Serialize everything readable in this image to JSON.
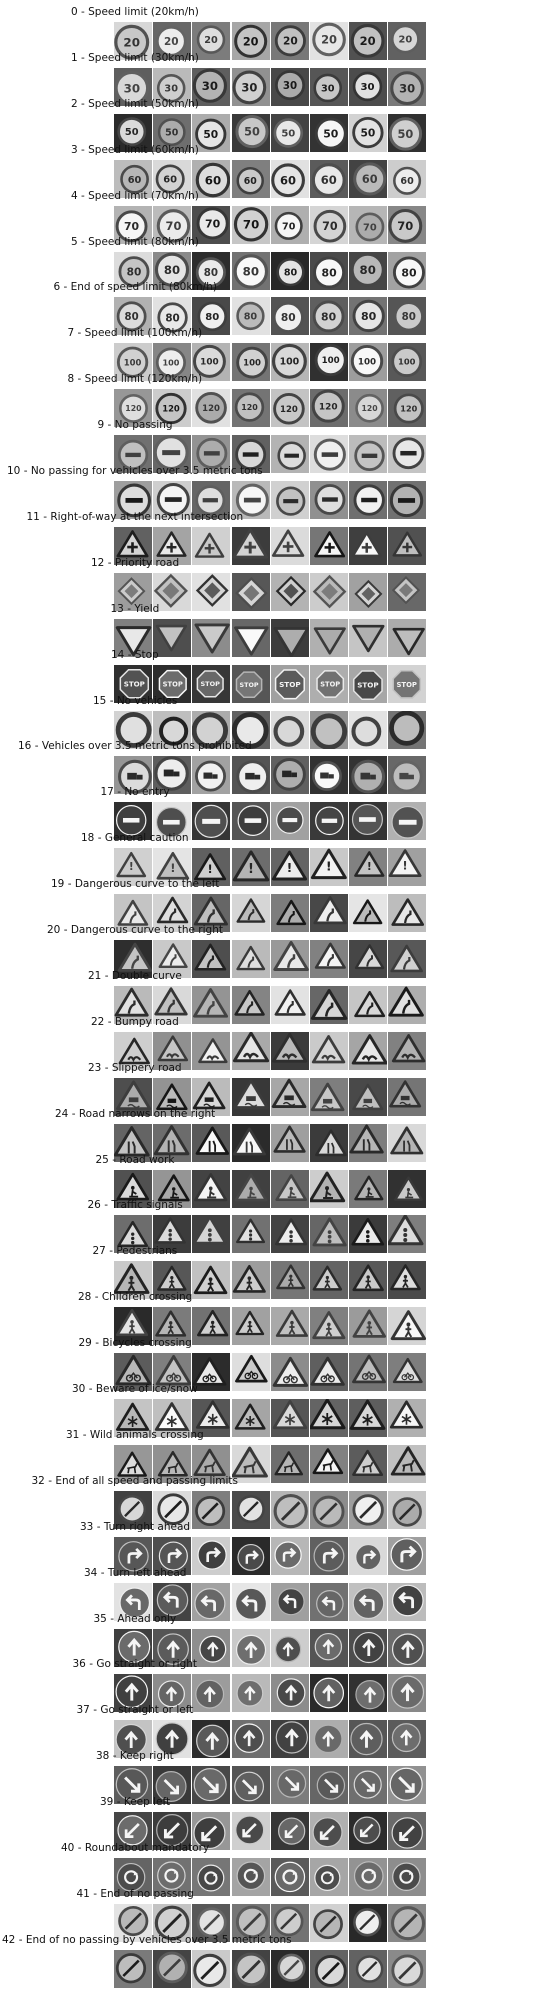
{
  "figure": {
    "images_per_class": 8,
    "colormap": "grayscale",
    "classes": [
      {
        "label": "0 - Speed limit (20km/h)",
        "shape": "circle",
        "symbol": "20"
      },
      {
        "label": "1 - Speed limit (30km/h)",
        "shape": "circle",
        "symbol": "30"
      },
      {
        "label": "2 - Speed limit (50km/h)",
        "shape": "circle",
        "symbol": "50"
      },
      {
        "label": "3 - Speed limit (60km/h)",
        "shape": "circle",
        "symbol": "60"
      },
      {
        "label": "4 - Speed limit (70km/h)",
        "shape": "circle",
        "symbol": "70"
      },
      {
        "label": "5 - Speed limit (80km/h)",
        "shape": "circle",
        "symbol": "80"
      },
      {
        "label": "6 - End of speed limit (80km/h)",
        "shape": "circle",
        "symbol": "80"
      },
      {
        "label": "7 - Speed limit (100km/h)",
        "shape": "circle",
        "symbol": "100"
      },
      {
        "label": "8 - Speed limit (120km/h)",
        "shape": "circle",
        "symbol": "120"
      },
      {
        "label": "9 - No passing",
        "shape": "circle",
        "symbol": "bar"
      },
      {
        "label": "10 - No passing for vehicles over 3.5 metric tons",
        "shape": "circle",
        "symbol": "bar"
      },
      {
        "label": "11 - Right-of-way at the next intersection",
        "shape": "triangle",
        "symbol": "cross"
      },
      {
        "label": "12 - Priority road",
        "shape": "diamond",
        "symbol": ""
      },
      {
        "label": "13 - Yield",
        "shape": "inv-triangle",
        "symbol": ""
      },
      {
        "label": "14 - Stop",
        "shape": "octagon",
        "symbol": "STOP"
      },
      {
        "label": "15 - No vehicles",
        "shape": "ring",
        "symbol": ""
      },
      {
        "label": "16 - Vehicles over 3.5 metric tons prohibited",
        "shape": "circle",
        "symbol": "truck"
      },
      {
        "label": "17 - No entry",
        "shape": "disc",
        "symbol": "bar"
      },
      {
        "label": "18 - General caution",
        "shape": "triangle",
        "symbol": "!"
      },
      {
        "label": "19 - Dangerous curve to the left",
        "shape": "triangle",
        "symbol": "curve"
      },
      {
        "label": "20 - Dangerous curve to the right",
        "shape": "triangle",
        "symbol": "curve"
      },
      {
        "label": "21 - Double curve",
        "shape": "triangle",
        "symbol": "curve"
      },
      {
        "label": "22 - Bumpy road",
        "shape": "triangle",
        "symbol": "bump"
      },
      {
        "label": "23 - Slippery road",
        "shape": "triangle",
        "symbol": "car"
      },
      {
        "label": "24 - Road narrows on the right",
        "shape": "triangle",
        "symbol": "narrow"
      },
      {
        "label": "25 - Road work",
        "shape": "triangle",
        "symbol": "work"
      },
      {
        "label": "26 - Traffic signals",
        "shape": "triangle",
        "symbol": "signal"
      },
      {
        "label": "27 - Pedestrians",
        "shape": "triangle",
        "symbol": "person"
      },
      {
        "label": "28 - Children crossing",
        "shape": "triangle",
        "symbol": "person"
      },
      {
        "label": "29 - Bicycles crossing",
        "shape": "triangle",
        "symbol": "bike"
      },
      {
        "label": "30 - Beware of ice/snow",
        "shape": "triangle",
        "symbol": "snow"
      },
      {
        "label": "31 - Wild animals crossing",
        "shape": "triangle",
        "symbol": "deer"
      },
      {
        "label": "32 - End of all speed and passing limits",
        "shape": "circle",
        "symbol": "slash"
      },
      {
        "label": "33 - Turn right ahead",
        "shape": "disc",
        "symbol": "arrow-right"
      },
      {
        "label": "34 - Turn left ahead",
        "shape": "disc",
        "symbol": "arrow-left"
      },
      {
        "label": "35 - Ahead only",
        "shape": "disc",
        "symbol": "arrow-up"
      },
      {
        "label": "36 - Go straight or right",
        "shape": "disc",
        "symbol": "arrow-up"
      },
      {
        "label": "37 - Go straight or left",
        "shape": "disc",
        "symbol": "arrow-up"
      },
      {
        "label": "38 - Keep right",
        "shape": "disc",
        "symbol": "arrow-dr"
      },
      {
        "label": "39 - Keep left",
        "shape": "disc",
        "symbol": "arrow-dl"
      },
      {
        "label": "40 - Roundabout mandatory",
        "shape": "disc",
        "symbol": "round"
      },
      {
        "label": "41 - End of no passing",
        "shape": "circle",
        "symbol": "slash"
      },
      {
        "label": "42 - End of no passing by vehicles over 3.5 metric tons",
        "shape": "circle",
        "symbol": "slash"
      }
    ]
  }
}
